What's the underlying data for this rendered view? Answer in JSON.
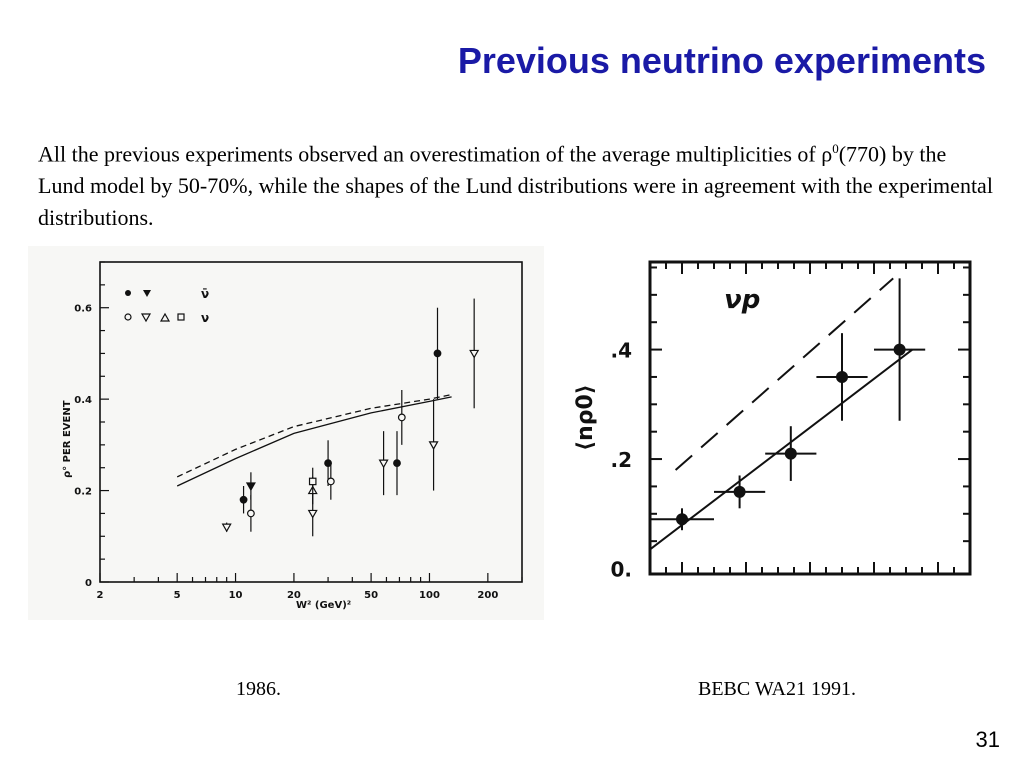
{
  "slide": {
    "title": "Previous neutrino experiments",
    "body_part1": "All the previous experiments observed an overestimation of the average multiplicities of ρ",
    "body_sup": "0",
    "body_part2": "(770) by the Lund model by 50-70%, while the shapes of the Lund distributions were in agreement with the experimental distributions.",
    "caption_left": "1986.",
    "caption_right": "BEBC WA21 1991.",
    "page_number": "31"
  },
  "chart_data": [
    {
      "type": "scatter",
      "ylabel": "ρ° PER EVENT",
      "xlabel": "W² (GeV)²",
      "x_scale": "log",
      "xlim": [
        2,
        300
      ],
      "ylim": [
        0,
        0.7
      ],
      "x_tick_labels": [
        "2",
        "5",
        "10",
        "20",
        "50",
        "100",
        "200"
      ],
      "y_tick_labels": [
        "0",
        "0.2",
        "0.4",
        "0.6"
      ],
      "grid": false,
      "legend": {
        "placement": "top-left",
        "rows": [
          {
            "markers": [
              "●",
              "▼"
            ],
            "label": "ν̄"
          },
          {
            "markers": [
              "○",
              "▽",
              "△",
              "□"
            ],
            "label": "ν"
          }
        ]
      },
      "series": [
        {
          "marker": "filled-circle",
          "points": [
            {
              "x": 11,
              "y": 0.18,
              "yerr": 0.03
            },
            {
              "x": 30,
              "y": 0.26,
              "yerr": 0.05
            },
            {
              "x": 68,
              "y": 0.26,
              "yerr": 0.07
            },
            {
              "x": 110,
              "y": 0.5,
              "yerr": 0.1
            }
          ]
        },
        {
          "marker": "filled-triangle-down",
          "points": [
            {
              "x": 12,
              "y": 0.21,
              "yerr": 0.03
            }
          ]
        },
        {
          "marker": "open-circle",
          "points": [
            {
              "x": 12,
              "y": 0.15,
              "yerr": 0.04
            },
            {
              "x": 31,
              "y": 0.22,
              "yerr": 0.04
            },
            {
              "x": 72,
              "y": 0.36,
              "yerr": 0.06
            }
          ]
        },
        {
          "marker": "open-triangle-down",
          "points": [
            {
              "x": 9,
              "y": 0.12,
              "yerr": 0.01
            },
            {
              "x": 25,
              "y": 0.15,
              "yerr": 0.05
            },
            {
              "x": 58,
              "y": 0.26,
              "yerr": 0.07
            },
            {
              "x": 105,
              "y": 0.3,
              "yerr": 0.1
            },
            {
              "x": 170,
              "y": 0.5,
              "yerr": 0.12
            }
          ]
        },
        {
          "marker": "open-triangle-up",
          "points": [
            {
              "x": 25,
              "y": 0.2,
              "yerr": 0.03
            }
          ]
        },
        {
          "marker": "open-square",
          "points": [
            {
              "x": 25,
              "y": 0.22,
              "yerr": 0.03
            }
          ]
        }
      ],
      "curves": [
        {
          "style": "solid",
          "points": [
            [
              5,
              0.21
            ],
            [
              10,
              0.27
            ],
            [
              20,
              0.325
            ],
            [
              50,
              0.37
            ],
            [
              100,
              0.395
            ],
            [
              130,
              0.405
            ]
          ]
        },
        {
          "style": "dashed",
          "points": [
            [
              5,
              0.23
            ],
            [
              10,
              0.29
            ],
            [
              20,
              0.34
            ],
            [
              50,
              0.38
            ],
            [
              100,
              0.4
            ],
            [
              130,
              0.41
            ]
          ]
        }
      ]
    },
    {
      "type": "scatter",
      "title": "νp",
      "ylabel": "⟨nρ0⟩",
      "xlim": [
        0,
        5
      ],
      "ylim": [
        -0.01,
        0.56
      ],
      "y_tick_labels": [
        "0.",
        ".2",
        ".4"
      ],
      "y_ticks": [
        0,
        0.2,
        0.4
      ],
      "grid": false,
      "series": [
        {
          "marker": "filled-circle",
          "points": [
            {
              "x": 0.5,
              "y": 0.09,
              "xerr": 0.5,
              "yerr": 0.02
            },
            {
              "x": 1.4,
              "y": 0.14,
              "xerr": 0.4,
              "yerr": 0.03
            },
            {
              "x": 2.2,
              "y": 0.21,
              "xerr": 0.4,
              "yerr": 0.05
            },
            {
              "x": 3.0,
              "y": 0.35,
              "xerr": 0.4,
              "yerr": 0.08
            },
            {
              "x": 3.9,
              "y": 0.4,
              "xerr": 0.4,
              "yerr": 0.13
            }
          ]
        }
      ],
      "curves": [
        {
          "style": "solid",
          "points": [
            [
              0,
              0.035
            ],
            [
              4.1,
              0.4
            ]
          ]
        },
        {
          "style": "dashed",
          "points": [
            [
              0.4,
              0.18
            ],
            [
              3.8,
              0.53
            ]
          ]
        }
      ]
    }
  ]
}
